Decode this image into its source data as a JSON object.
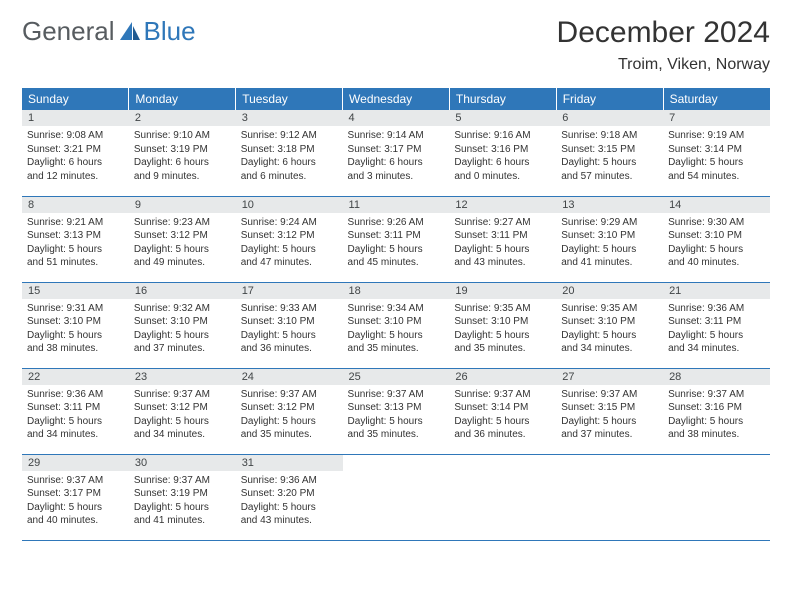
{
  "logo": {
    "word1": "General",
    "word2": "Blue",
    "accent_color": "#2f77b9",
    "text_color": "#575c60"
  },
  "title": "December 2024",
  "location": "Troim, Viken, Norway",
  "header_bg": "#2f77b9",
  "header_fg": "#ffffff",
  "daynum_bg": "#e7e9ea",
  "rule_color": "#2f77b9",
  "weekdays": [
    "Sunday",
    "Monday",
    "Tuesday",
    "Wednesday",
    "Thursday",
    "Friday",
    "Saturday"
  ],
  "days": [
    {
      "n": "1",
      "sr": "9:08 AM",
      "ss": "3:21 PM",
      "dh": "6",
      "dm": "12"
    },
    {
      "n": "2",
      "sr": "9:10 AM",
      "ss": "3:19 PM",
      "dh": "6",
      "dm": "9"
    },
    {
      "n": "3",
      "sr": "9:12 AM",
      "ss": "3:18 PM",
      "dh": "6",
      "dm": "6"
    },
    {
      "n": "4",
      "sr": "9:14 AM",
      "ss": "3:17 PM",
      "dh": "6",
      "dm": "3"
    },
    {
      "n": "5",
      "sr": "9:16 AM",
      "ss": "3:16 PM",
      "dh": "6",
      "dm": "0"
    },
    {
      "n": "6",
      "sr": "9:18 AM",
      "ss": "3:15 PM",
      "dh": "5",
      "dm": "57"
    },
    {
      "n": "7",
      "sr": "9:19 AM",
      "ss": "3:14 PM",
      "dh": "5",
      "dm": "54"
    },
    {
      "n": "8",
      "sr": "9:21 AM",
      "ss": "3:13 PM",
      "dh": "5",
      "dm": "51"
    },
    {
      "n": "9",
      "sr": "9:23 AM",
      "ss": "3:12 PM",
      "dh": "5",
      "dm": "49"
    },
    {
      "n": "10",
      "sr": "9:24 AM",
      "ss": "3:12 PM",
      "dh": "5",
      "dm": "47"
    },
    {
      "n": "11",
      "sr": "9:26 AM",
      "ss": "3:11 PM",
      "dh": "5",
      "dm": "45"
    },
    {
      "n": "12",
      "sr": "9:27 AM",
      "ss": "3:11 PM",
      "dh": "5",
      "dm": "43"
    },
    {
      "n": "13",
      "sr": "9:29 AM",
      "ss": "3:10 PM",
      "dh": "5",
      "dm": "41"
    },
    {
      "n": "14",
      "sr": "9:30 AM",
      "ss": "3:10 PM",
      "dh": "5",
      "dm": "40"
    },
    {
      "n": "15",
      "sr": "9:31 AM",
      "ss": "3:10 PM",
      "dh": "5",
      "dm": "38"
    },
    {
      "n": "16",
      "sr": "9:32 AM",
      "ss": "3:10 PM",
      "dh": "5",
      "dm": "37"
    },
    {
      "n": "17",
      "sr": "9:33 AM",
      "ss": "3:10 PM",
      "dh": "5",
      "dm": "36"
    },
    {
      "n": "18",
      "sr": "9:34 AM",
      "ss": "3:10 PM",
      "dh": "5",
      "dm": "35"
    },
    {
      "n": "19",
      "sr": "9:35 AM",
      "ss": "3:10 PM",
      "dh": "5",
      "dm": "35"
    },
    {
      "n": "20",
      "sr": "9:35 AM",
      "ss": "3:10 PM",
      "dh": "5",
      "dm": "34"
    },
    {
      "n": "21",
      "sr": "9:36 AM",
      "ss": "3:11 PM",
      "dh": "5",
      "dm": "34"
    },
    {
      "n": "22",
      "sr": "9:36 AM",
      "ss": "3:11 PM",
      "dh": "5",
      "dm": "34"
    },
    {
      "n": "23",
      "sr": "9:37 AM",
      "ss": "3:12 PM",
      "dh": "5",
      "dm": "34"
    },
    {
      "n": "24",
      "sr": "9:37 AM",
      "ss": "3:12 PM",
      "dh": "5",
      "dm": "35"
    },
    {
      "n": "25",
      "sr": "9:37 AM",
      "ss": "3:13 PM",
      "dh": "5",
      "dm": "35"
    },
    {
      "n": "26",
      "sr": "9:37 AM",
      "ss": "3:14 PM",
      "dh": "5",
      "dm": "36"
    },
    {
      "n": "27",
      "sr": "9:37 AM",
      "ss": "3:15 PM",
      "dh": "5",
      "dm": "37"
    },
    {
      "n": "28",
      "sr": "9:37 AM",
      "ss": "3:16 PM",
      "dh": "5",
      "dm": "38"
    },
    {
      "n": "29",
      "sr": "9:37 AM",
      "ss": "3:17 PM",
      "dh": "5",
      "dm": "40"
    },
    {
      "n": "30",
      "sr": "9:37 AM",
      "ss": "3:19 PM",
      "dh": "5",
      "dm": "41"
    },
    {
      "n": "31",
      "sr": "9:36 AM",
      "ss": "3:20 PM",
      "dh": "5",
      "dm": "43"
    }
  ],
  "labels": {
    "sunrise": "Sunrise:",
    "sunset": "Sunset:",
    "daylight": "Daylight:",
    "hours": "hours",
    "and": "and",
    "minutes": "minutes."
  }
}
